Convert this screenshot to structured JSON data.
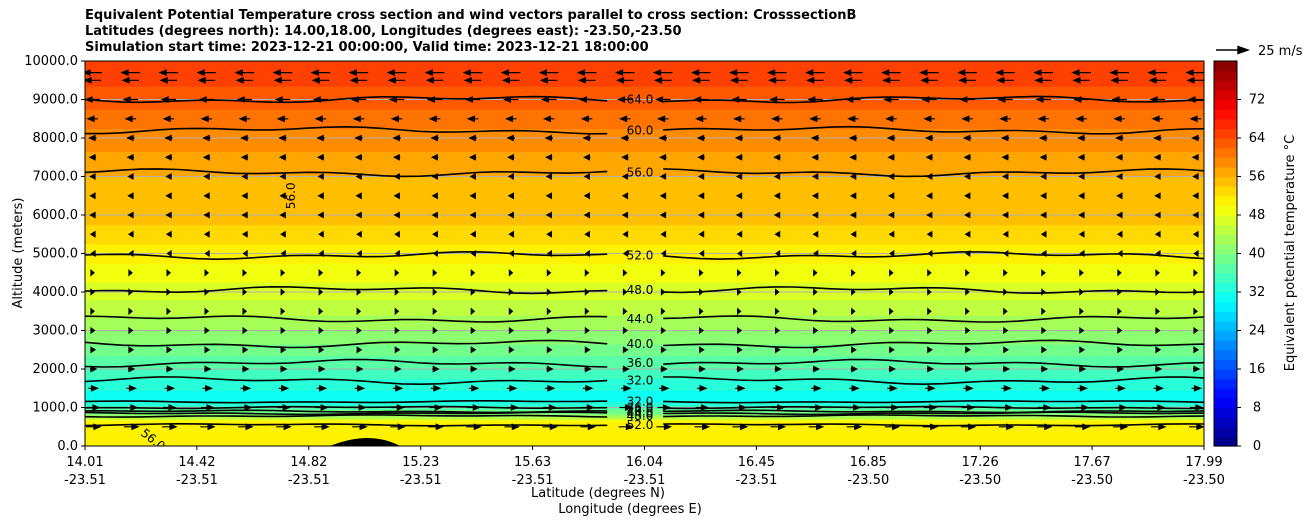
{
  "titles": {
    "line1": "Equivalent Potential Temperature cross section and wind vectors parallel to cross section: CrosssectionB",
    "line2": "Latitudes (degrees north): 14.00,18.00, Longitudes (degrees east): -23.50,-23.50",
    "line3": "Simulation start time: 2023-12-21 00:00:00, Valid time: 2023-12-21 18:00:00"
  },
  "chart_data": {
    "type": "heatmap",
    "ylabel": "Altitude (meters)",
    "xlabel_lat": "Latitude (degrees N)",
    "xlabel_lon": "Longitude (degrees E)",
    "colorbar_label": "Equivalent potential temperature $^\\circ$C",
    "ylim": [
      0,
      10000
    ],
    "yticks": [
      "0.0",
      "1000.0",
      "2000.0",
      "3000.0",
      "4000.0",
      "5000.0",
      "6000.0",
      "7000.0",
      "8000.0",
      "9000.0",
      "10000.0"
    ],
    "xticks": [
      {
        "lat": "14.01",
        "lon": "-23.51"
      },
      {
        "lat": "14.42",
        "lon": "-23.51"
      },
      {
        "lat": "14.82",
        "lon": "-23.51"
      },
      {
        "lat": "15.23",
        "lon": "-23.51"
      },
      {
        "lat": "15.63",
        "lon": "-23.51"
      },
      {
        "lat": "16.04",
        "lon": "-23.51"
      },
      {
        "lat": "16.45",
        "lon": "-23.51"
      },
      {
        "lat": "16.85",
        "lon": "-23.50"
      },
      {
        "lat": "17.26",
        "lon": "-23.50"
      },
      {
        "lat": "17.67",
        "lon": "-23.50"
      },
      {
        "lat": "17.99",
        "lon": "-23.50"
      }
    ],
    "colorbar_ticks": [
      "0",
      "8",
      "16",
      "24",
      "32",
      "40",
      "48",
      "56",
      "64",
      "72"
    ],
    "colorbar_range": [
      0,
      80
    ],
    "wind_reference": "25 m/s",
    "grid": "horizontal",
    "theta_e_profile": [
      {
        "alt": 0,
        "theta": 51
      },
      {
        "alt": 600,
        "theta": 52
      },
      {
        "alt": 800,
        "theta": 42
      },
      {
        "alt": 1200,
        "theta": 30
      },
      {
        "alt": 2000,
        "theta": 36
      },
      {
        "alt": 3000,
        "theta": 42
      },
      {
        "alt": 4000,
        "theta": 47
      },
      {
        "alt": 5000,
        "theta": 51
      },
      {
        "alt": 6000,
        "theta": 55
      },
      {
        "alt": 7000,
        "theta": 56
      },
      {
        "alt": 8000,
        "theta": 59
      },
      {
        "alt": 9000,
        "theta": 63
      },
      {
        "alt": 10000,
        "theta": 66
      }
    ],
    "contours": [
      {
        "label": "64.0",
        "alt": 9000
      },
      {
        "label": "60.0",
        "alt": 8200
      },
      {
        "label": "56.0",
        "alt": 7100
      },
      {
        "label": "52.0",
        "alt": 4950
      },
      {
        "label": "48.0",
        "alt": 4050
      },
      {
        "label": "44.0",
        "alt": 3300
      },
      {
        "label": "40.0",
        "alt": 2650
      },
      {
        "label": "36.0",
        "alt": 2150
      },
      {
        "label": "32.0",
        "alt": 1700
      },
      {
        "label": "32.0",
        "alt": 1150
      },
      {
        "label": "36.0",
        "alt": 1000
      },
      {
        "label": "40.0",
        "alt": 900
      },
      {
        "label": "44.0",
        "alt": 850
      },
      {
        "label": "48.0",
        "alt": 780
      },
      {
        "label": "52.0",
        "alt": 550
      }
    ],
    "side_labels": [
      {
        "label": "56.0",
        "alt": 6500
      },
      {
        "label": "56.0",
        "alt": 300
      }
    ],
    "wind_rows": [
      {
        "alt": 9700,
        "dir": -1,
        "len": 18
      },
      {
        "alt": 9500,
        "dir": -1,
        "len": 16
      },
      {
        "alt": 9000,
        "dir": -1,
        "len": 14
      },
      {
        "alt": 8500,
        "dir": -1,
        "len": 10
      },
      {
        "alt": 8000,
        "dir": -1,
        "len": 7
      },
      {
        "alt": 7500,
        "dir": -1,
        "len": 6
      },
      {
        "alt": 7000,
        "dir": -1,
        "len": 5
      },
      {
        "alt": 6500,
        "dir": -1,
        "len": 5
      },
      {
        "alt": 6000,
        "dir": -1,
        "len": 5
      },
      {
        "alt": 5500,
        "dir": -1,
        "len": 4
      },
      {
        "alt": 5000,
        "dir": -1,
        "len": 3
      },
      {
        "alt": 4500,
        "dir": 1,
        "len": 2
      },
      {
        "alt": 4000,
        "dir": 1,
        "len": 2
      },
      {
        "alt": 3500,
        "dir": 1,
        "len": 2
      },
      {
        "alt": 3000,
        "dir": 1,
        "len": 3
      },
      {
        "alt": 2500,
        "dir": 1,
        "len": 4
      },
      {
        "alt": 2000,
        "dir": 1,
        "len": 6
      },
      {
        "alt": 1500,
        "dir": 1,
        "len": 9
      },
      {
        "alt": 1000,
        "dir": 1,
        "len": 12
      },
      {
        "alt": 500,
        "dir": 1,
        "len": 14
      }
    ]
  }
}
